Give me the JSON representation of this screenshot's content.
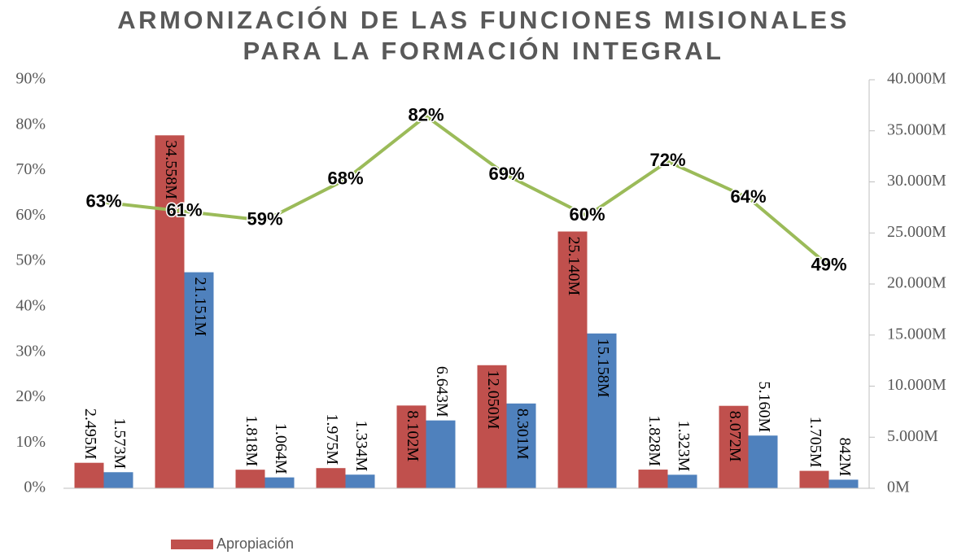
{
  "chart_data": {
    "type": "bar",
    "title": "ARMONIZACIÓN DE LAS FUNCIONES MISIONALES PARA LA FORMACIÓN INTEGRAL",
    "series": [
      {
        "name": "Apropiación",
        "type": "bar",
        "axis": "y2",
        "color": "#c0504d",
        "values": [
          2495,
          34558,
          1818,
          1975,
          8102,
          12050,
          25140,
          1828,
          8072,
          1705
        ],
        "value_labels": [
          "2.495M",
          "34.558M",
          "1.818M",
          "1.975M",
          "8.102M",
          "12.050M",
          "25.140M",
          "1.828M",
          "8.072M",
          "1.705M"
        ]
      },
      {
        "type": "bar",
        "axis": "y2",
        "color": "#4f81bd",
        "values": [
          1573,
          21151,
          1064,
          1334,
          6643,
          8301,
          15158,
          1323,
          5160,
          842
        ],
        "value_labels": [
          "1.573M",
          "21.151M",
          "1.064M",
          "1.334M",
          "6.643M",
          "8.301M",
          "15.158M",
          "1.323M",
          "5.160M",
          "842M"
        ]
      },
      {
        "type": "line",
        "color": "#9bbb59",
        "values": [
          63,
          61,
          59,
          68,
          82,
          69,
          60,
          72,
          64,
          49
        ],
        "value_labels": [
          "63%",
          "61%",
          "59%",
          "68%",
          "82%",
          "69%",
          "60%",
          "72%",
          "64%",
          "49%"
        ]
      }
    ],
    "ylim": [
      0,
      90
    ],
    "yticks": [
      {
        "value": 0,
        "label": "0%"
      },
      {
        "value": 10,
        "label": "10%"
      },
      {
        "value": 20,
        "label": "20%"
      },
      {
        "value": 30,
        "label": "30%"
      },
      {
        "value": 40,
        "label": "40%"
      },
      {
        "value": 50,
        "label": "50%"
      },
      {
        "value": 60,
        "label": "60%"
      },
      {
        "value": 70,
        "label": "70%"
      },
      {
        "value": 80,
        "label": "80%"
      },
      {
        "value": 90,
        "label": "90%"
      }
    ],
    "y2lim": [
      0,
      40000
    ],
    "y2ticks": [
      {
        "value": 0,
        "label": "0M"
      },
      {
        "value": 5000,
        "label": "5.000M"
      },
      {
        "value": 10000,
        "label": "10.000M"
      },
      {
        "value": 15000,
        "label": "15.000M"
      },
      {
        "value": 20000,
        "label": "20.000M"
      },
      {
        "value": 25000,
        "label": "25.000M"
      },
      {
        "value": 30000,
        "label": "30.000M"
      },
      {
        "value": 35000,
        "label": "35.000M"
      },
      {
        "value": 40000,
        "label": "40.000M"
      }
    ],
    "legend": "bottom"
  }
}
